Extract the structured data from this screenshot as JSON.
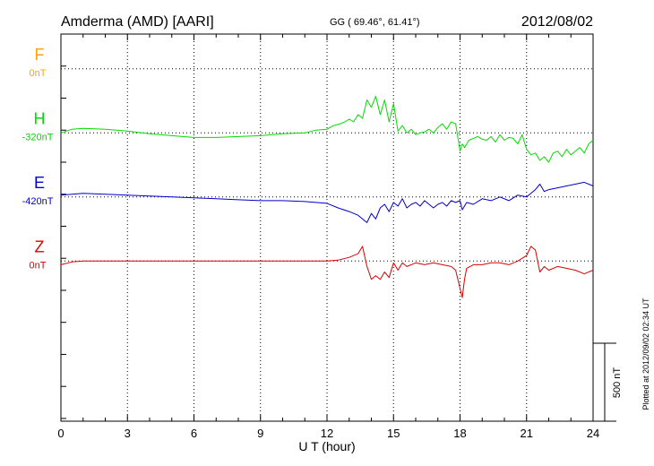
{
  "header": {
    "station": "Amderma (AMD)  [AARI]",
    "coords": "GG ( 69.46°,  61.41°)",
    "date": "2012/08/02"
  },
  "footer_note": "Plotted at 2012/09/02 02:34 UT",
  "chart_data": {
    "type": "line",
    "title": "Amderma (AMD)  [AARI]",
    "xlabel": "U T (hour)",
    "ylabel": "",
    "xlim": [
      0,
      24
    ],
    "xticks": [
      0,
      3,
      6,
      9,
      12,
      15,
      18,
      21,
      24
    ],
    "grid": true,
    "scale_bar": {
      "label": "500 nT",
      "value_nT": 500
    },
    "ylim_nT": [
      -875,
      1240
    ],
    "series": [
      {
        "name": "F",
        "baseline_label": "0nT",
        "color": "#ffa500",
        "baseline_nT": 1050,
        "x": [],
        "values": []
      },
      {
        "name": "H",
        "baseline_label": "-320nT",
        "color": "#00dd00",
        "baseline_nT": 700,
        "x": [
          0,
          0.5,
          1,
          2,
          3,
          4,
          5,
          6,
          7,
          8,
          9,
          10,
          11,
          11.5,
          12,
          12.3,
          12.6,
          12.8,
          13,
          13.2,
          13.4,
          13.6,
          13.8,
          14,
          14.2,
          14.4,
          14.6,
          14.8,
          15,
          15.2,
          15.4,
          15.6,
          15.8,
          16,
          16.2,
          16.4,
          16.6,
          16.8,
          17,
          17.2,
          17.4,
          17.6,
          17.8,
          18,
          18.1,
          18.2,
          18.4,
          18.6,
          18.8,
          19,
          19.2,
          19.4,
          19.6,
          19.8,
          20,
          20.2,
          20.4,
          20.6,
          20.8,
          21,
          21.2,
          21.4,
          21.6,
          21.8,
          22,
          22.2,
          22.4,
          22.6,
          22.8,
          23,
          23.2,
          23.4,
          23.6,
          23.8,
          24
        ],
        "values": [
          0,
          20,
          25,
          20,
          10,
          -5,
          -15,
          -25,
          -25,
          -20,
          -15,
          -5,
          0,
          15,
          20,
          40,
          50,
          60,
          75,
          60,
          100,
          80,
          180,
          140,
          200,
          100,
          180,
          60,
          160,
          10,
          40,
          0,
          20,
          -10,
          0,
          5,
          20,
          0,
          30,
          50,
          20,
          60,
          50,
          -100,
          -60,
          -80,
          -40,
          -30,
          -20,
          -35,
          -40,
          -20,
          -50,
          -10,
          -40,
          -25,
          -30,
          -60,
          -10,
          -90,
          -120,
          -110,
          -150,
          -130,
          -160,
          -110,
          -100,
          -130,
          -90,
          -120,
          -100,
          -80,
          -110,
          -60,
          -40
        ]
      },
      {
        "name": "E",
        "baseline_label": "-420nT",
        "color": "#0000cc",
        "baseline_nT": 350,
        "x": [
          0,
          1,
          2,
          3,
          4,
          5,
          6,
          7,
          8,
          9,
          10,
          11,
          11.5,
          12,
          12.5,
          13,
          13.4,
          13.8,
          14,
          14.2,
          14.4,
          14.6,
          14.8,
          15,
          15.2,
          15.4,
          15.6,
          15.8,
          16,
          16.2,
          16.4,
          16.6,
          16.8,
          17,
          17.2,
          17.4,
          17.6,
          17.8,
          18,
          18.1,
          18.3,
          18.6,
          19,
          19.4,
          19.8,
          20.2,
          20.6,
          21,
          21.4,
          21.6,
          21.8,
          22,
          22.4,
          22.8,
          23.2,
          23.6,
          24
        ],
        "values": [
          10,
          20,
          15,
          10,
          5,
          0,
          -5,
          -10,
          -15,
          -20,
          -20,
          -25,
          -30,
          -35,
          -60,
          -80,
          -100,
          -140,
          -90,
          -120,
          -60,
          -40,
          -80,
          -30,
          -50,
          -10,
          -60,
          -40,
          -30,
          -50,
          -20,
          -40,
          -60,
          -40,
          -30,
          -50,
          -20,
          -30,
          -20,
          -70,
          -30,
          -40,
          -10,
          -20,
          0,
          -20,
          10,
          0,
          40,
          70,
          30,
          40,
          50,
          60,
          70,
          80,
          60
        ]
      },
      {
        "name": "Z",
        "baseline_label": "0nT",
        "color": "#dd0000",
        "baseline_nT": 0,
        "x": [
          0,
          0.5,
          1,
          2,
          3,
          4,
          5,
          6,
          7,
          8,
          9,
          10,
          11,
          12,
          12.5,
          13,
          13.4,
          13.6,
          13.8,
          14,
          14.2,
          14.4,
          14.6,
          14.8,
          15,
          15.2,
          15.4,
          15.6,
          15.8,
          16,
          16.4,
          16.8,
          17.2,
          17.6,
          17.8,
          18,
          18.1,
          18.2,
          18.3,
          18.6,
          19,
          19.4,
          19.8,
          20.2,
          20.6,
          21,
          21.2,
          21.4,
          21.6,
          21.8,
          22,
          22.4,
          22.8,
          23.2,
          23.6,
          24
        ],
        "values": [
          -20,
          -5,
          0,
          0,
          0,
          0,
          0,
          0,
          0,
          0,
          0,
          0,
          0,
          0,
          5,
          20,
          40,
          80,
          -30,
          -100,
          -80,
          -100,
          -60,
          -90,
          -10,
          -50,
          -10,
          -30,
          -20,
          -10,
          -20,
          -10,
          -20,
          -30,
          -50,
          -150,
          -200,
          -100,
          -40,
          -20,
          -20,
          -10,
          -10,
          -20,
          0,
          30,
          80,
          60,
          -60,
          -30,
          -50,
          -30,
          -40,
          -50,
          -70,
          -50
        ]
      }
    ]
  }
}
